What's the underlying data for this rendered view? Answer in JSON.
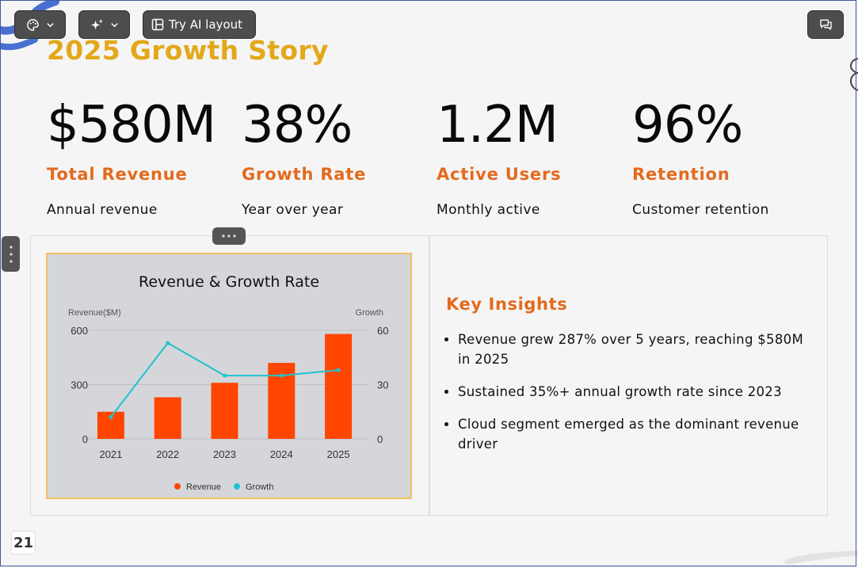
{
  "toolbar": {
    "layout_label": "Try AI layout"
  },
  "slide": {
    "title": "2025 Growth Story",
    "stats": [
      {
        "value": "$580M",
        "label": "Total Revenue",
        "desc": "Annual revenue"
      },
      {
        "value": "38%",
        "label": "Growth Rate",
        "desc": "Year over year"
      },
      {
        "value": "1.2M",
        "label": "Active Users",
        "desc": "Monthly active"
      },
      {
        "value": "96%",
        "label": "Retention",
        "desc": "Customer retention"
      }
    ],
    "insights": {
      "title": "Key Insights",
      "items": [
        "Revenue grew 287% over 5 years, reaching $580M in 2025",
        "Sustained 35%+ annual growth rate since 2023",
        "Cloud segment emerged as the dominant revenue driver"
      ]
    },
    "page_number": "21"
  },
  "colors": {
    "title": "#e3a81a",
    "accent": "#e36a1e",
    "bar": "#ff4500",
    "line": "#1fc3cf"
  },
  "chart_data": {
    "type": "bar",
    "title": "Revenue & Growth Rate",
    "categories": [
      "2021",
      "2022",
      "2023",
      "2024",
      "2025"
    ],
    "series": [
      {
        "name": "Revenue",
        "type": "bar",
        "axis": "left",
        "values": [
          150,
          230,
          310,
          420,
          580
        ]
      },
      {
        "name": "Growth",
        "type": "line",
        "axis": "right",
        "values": [
          12,
          53,
          35,
          35,
          38
        ]
      }
    ],
    "y_left": {
      "label": "Revenue($M)",
      "range": [
        0,
        600
      ],
      "ticks": [
        "0",
        "300",
        "600"
      ]
    },
    "y_right": {
      "label": "Growth",
      "range": [
        0,
        60
      ],
      "ticks": [
        "0",
        "30",
        "60"
      ]
    },
    "legend_position": "bottom",
    "grid": true
  }
}
